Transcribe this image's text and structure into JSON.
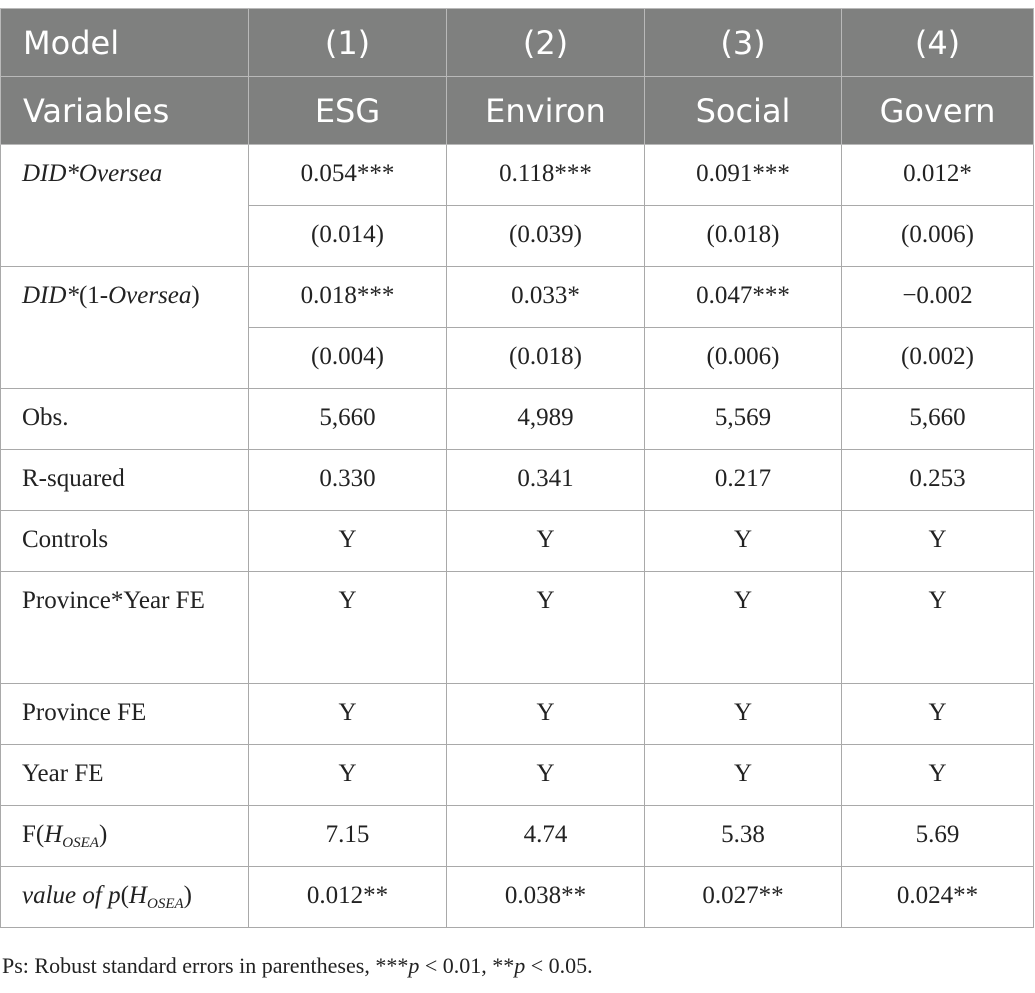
{
  "header": {
    "row1": [
      "Model",
      "(1)",
      "(2)",
      "(3)",
      "(4)"
    ],
    "row2": [
      "Variables",
      "ESG",
      "Environ",
      "Social",
      "Govern"
    ]
  },
  "rows": [
    {
      "label": "DID*Oversea",
      "values": [
        "0.054***",
        "0.118***",
        "0.091***",
        "0.012*"
      ]
    },
    {
      "label": "",
      "values": [
        "(0.014)",
        "(0.039)",
        "(0.018)",
        "(0.006)"
      ]
    },
    {
      "label_pre": "DID*",
      "label_mid": "(1-",
      "label_it": "Oversea",
      "label_post": ")",
      "values": [
        "0.018***",
        "0.033*",
        "0.047***",
        "−0.002"
      ]
    },
    {
      "label": "",
      "values": [
        "(0.004)",
        "(0.018)",
        "(0.006)",
        "(0.002)"
      ]
    },
    {
      "label": "Obs.",
      "values": [
        "5,660",
        "4,989",
        "5,569",
        "5,660"
      ]
    },
    {
      "label": "R-squared",
      "values": [
        "0.330",
        "0.341",
        "0.217",
        "0.253"
      ]
    },
    {
      "label": "Controls",
      "values": [
        "Y",
        "Y",
        "Y",
        "Y"
      ]
    },
    {
      "label": "Province*Year FE",
      "values": [
        "Y",
        "Y",
        "Y",
        "Y"
      ]
    },
    {
      "label": "Province FE",
      "values": [
        "Y",
        "Y",
        "Y",
        "Y"
      ]
    },
    {
      "label": "Year FE",
      "values": [
        "Y",
        "Y",
        "Y",
        "Y"
      ]
    },
    {
      "label_f": "F(",
      "label_h": "H",
      "label_sub": "OSEA",
      "label_close": ")",
      "values": [
        "7.15",
        "4.74",
        "5.38",
        "5.69"
      ]
    },
    {
      "label_v": "value of p",
      "label_h": "H",
      "label_sub": "OSEA",
      "label_close": ")",
      "values": [
        "0.012**",
        "0.038**",
        "0.027**",
        "0.024**"
      ]
    }
  ],
  "note": {
    "prefix": "Ps: Robust standard errors in parentheses, ***",
    "p1": "p",
    "mid": " < 0.01, **",
    "p2": "p",
    "suffix": " < 0.05."
  }
}
